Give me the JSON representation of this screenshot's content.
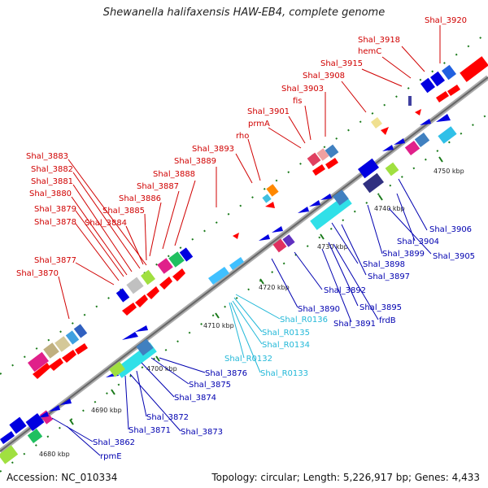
{
  "title": "Shewanella halifaxensis HAW-EB4, complete genome",
  "footer": {
    "accession": "Accession: NC_010334",
    "summary": "Topology: circular; Length: 5,226,917 bp; Genes: 4,433"
  },
  "colors": {
    "top_label": "#d00000",
    "bottom_label": "#0000b0",
    "rna_label": "#22b8d8",
    "backbone": "#888888",
    "tick": "#1a7a1a"
  },
  "scale_labels": [
    "4680 kbp",
    "4690 kbp",
    "4700 kbp",
    "4710 kbp",
    "4720 kbp",
    "4730 kbp",
    "4740 kbp",
    "4750 kbp"
  ],
  "top_labels": [
    "Shal_3920",
    "Shal_3918",
    "hemC",
    "Shal_3915",
    "Shal_3908",
    "Shal_3903",
    "fis",
    "Shal_3901",
    "prmA",
    "rho",
    "Shal_3893",
    "Shal_3889",
    "Shal_3888",
    "Shal_3887",
    "Shal_3886",
    "Shal_3885",
    "Shal_3884",
    "Shal_3883",
    "Shal_3882",
    "Shal_3881",
    "Shal_3880",
    "Shal_3879",
    "Shal_3878",
    "Shal_3877",
    "Shal_3870"
  ],
  "bottom_labels": [
    "Shal_3906",
    "Shal_3904",
    "Shal_3905",
    "Shal_3899",
    "Shal_3898",
    "Shal_3897",
    "Shal_3892",
    "Shal_3895",
    "Shal_3890",
    "Shal_3891",
    "frdB",
    "Shal_3876",
    "Shal_3875",
    "Shal_3874",
    "Shal_3872",
    "Shal_3873",
    "Shal_3871",
    "Shal_3862",
    "rpmE"
  ],
  "rna_labels": [
    "Shal_R0136",
    "Shal_R0135",
    "Shal_R0134",
    "Shal_R0132",
    "Shal_R0133"
  ]
}
